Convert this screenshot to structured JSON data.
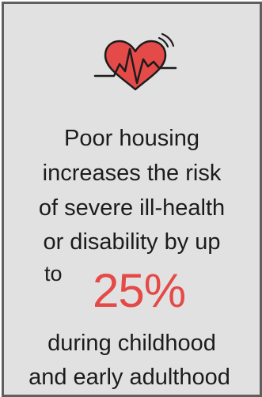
{
  "card": {
    "icon": "heart-rate-icon",
    "line1": "Poor housing",
    "line2": "increases the risk",
    "line3": "of severe ill-health",
    "line4": "or disability by up",
    "line5": "to",
    "highlight": "25%",
    "line7": "during childhood",
    "line8": "and early adulthood"
  },
  "colors": {
    "accent": "#e44a48",
    "text": "#1c1c1c",
    "background": "#e1e1e1",
    "border": "#5f5f5f"
  }
}
